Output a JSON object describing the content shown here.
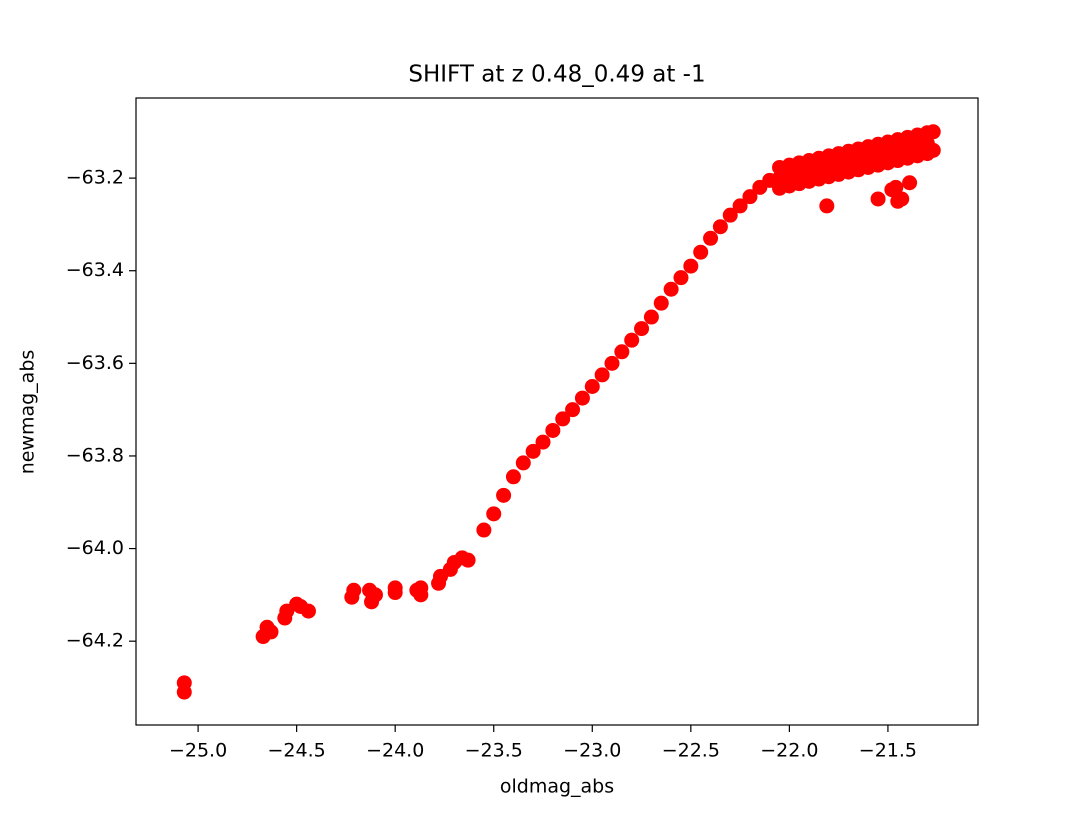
{
  "chart_data": {
    "type": "scatter",
    "title": "SHIFT at z 0.48_0.49 at -1",
    "xlabel": "oldmag_abs",
    "ylabel": "newmag_abs",
    "color": "#ff0000",
    "xlim": [
      -25.315,
      -21.043
    ],
    "ylim": [
      -64.381,
      -63.027
    ],
    "xticks": [
      {
        "value": -25.0,
        "label": "−25.0"
      },
      {
        "value": -24.5,
        "label": "−24.5"
      },
      {
        "value": -24.0,
        "label": "−24.0"
      },
      {
        "value": -23.5,
        "label": "−23.5"
      },
      {
        "value": -23.0,
        "label": "−23.0"
      },
      {
        "value": -22.5,
        "label": "−22.5"
      },
      {
        "value": -22.0,
        "label": "−22.0"
      },
      {
        "value": -21.5,
        "label": "−21.5"
      }
    ],
    "yticks": [
      {
        "value": -64.2,
        "label": "−64.2"
      },
      {
        "value": -64.0,
        "label": "−64.0"
      },
      {
        "value": -63.8,
        "label": "−63.8"
      },
      {
        "value": -63.6,
        "label": "−63.6"
      },
      {
        "value": -63.4,
        "label": "−63.4"
      },
      {
        "value": -63.2,
        "label": "−63.2"
      }
    ],
    "x": [
      -25.07,
      -25.07,
      -24.67,
      -24.65,
      -24.63,
      -24.56,
      -24.55,
      -24.5,
      -24.48,
      -24.44,
      -24.22,
      -24.21,
      -24.13,
      -24.12,
      -24.1,
      -24.0,
      -24.0,
      -23.89,
      -23.87,
      -23.87,
      -23.78,
      -23.77,
      -23.72,
      -23.7,
      -23.66,
      -23.63,
      -23.55,
      -23.5,
      -23.45,
      -23.4,
      -23.35,
      -23.3,
      -23.25,
      -23.2,
      -23.15,
      -23.1,
      -23.05,
      -23.0,
      -22.95,
      -22.9,
      -22.85,
      -22.8,
      -22.75,
      -22.7,
      -22.65,
      -22.6,
      -22.55,
      -22.5,
      -22.45,
      -22.4,
      -22.35,
      -22.3,
      -22.25,
      -22.2,
      -22.15,
      -22.1,
      -22.05,
      -22.0,
      -21.95,
      -21.9,
      -21.85,
      -21.8,
      -21.75,
      -21.7,
      -21.65,
      -21.6,
      -21.55,
      -21.5,
      -21.45,
      -21.4,
      -21.35,
      -21.3,
      -22.05,
      -22.0,
      -21.95,
      -21.9,
      -21.85,
      -21.8,
      -21.75,
      -21.7,
      -21.65,
      -21.6,
      -21.55,
      -21.5,
      -21.45,
      -21.4,
      -21.35,
      -21.3,
      -22.05,
      -22.0,
      -21.95,
      -21.9,
      -21.85,
      -21.8,
      -21.75,
      -21.7,
      -21.65,
      -21.6,
      -21.55,
      -21.5,
      -21.45,
      -21.4,
      -21.35,
      -21.3,
      -21.27,
      -21.27,
      -21.81,
      -21.55,
      -21.48,
      -21.46,
      -21.45,
      -21.43,
      -21.39
    ],
    "y": [
      -64.29,
      -64.31,
      -64.19,
      -64.17,
      -64.18,
      -64.15,
      -64.135,
      -64.12,
      -64.125,
      -64.135,
      -64.105,
      -64.09,
      -64.09,
      -64.115,
      -64.1,
      -64.085,
      -64.095,
      -64.09,
      -64.085,
      -64.1,
      -64.075,
      -64.06,
      -64.045,
      -64.03,
      -64.02,
      -64.025,
      -63.96,
      -63.925,
      -63.885,
      -63.845,
      -63.815,
      -63.79,
      -63.77,
      -63.745,
      -63.72,
      -63.7,
      -63.675,
      -63.65,
      -63.625,
      -63.6,
      -63.575,
      -63.55,
      -63.525,
      -63.5,
      -63.47,
      -63.44,
      -63.415,
      -63.39,
      -63.36,
      -63.33,
      -63.305,
      -63.28,
      -63.26,
      -63.24,
      -63.22,
      -63.205,
      -63.177,
      -63.172,
      -63.167,
      -63.162,
      -63.157,
      -63.152,
      -63.147,
      -63.142,
      -63.137,
      -63.132,
      -63.127,
      -63.122,
      -63.117,
      -63.112,
      -63.107,
      -63.102,
      -63.2,
      -63.195,
      -63.19,
      -63.185,
      -63.18,
      -63.175,
      -63.17,
      -63.165,
      -63.16,
      -63.155,
      -63.15,
      -63.145,
      -63.14,
      -63.135,
      -63.13,
      -63.125,
      -63.222,
      -63.217,
      -63.212,
      -63.207,
      -63.202,
      -63.197,
      -63.192,
      -63.187,
      -63.182,
      -63.177,
      -63.172,
      -63.167,
      -63.162,
      -63.157,
      -63.152,
      -63.147,
      -63.1,
      -63.14,
      -63.26,
      -63.245,
      -63.225,
      -63.22,
      -63.25,
      -63.245,
      -63.21
    ]
  }
}
